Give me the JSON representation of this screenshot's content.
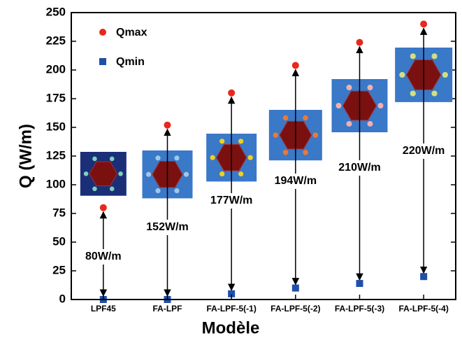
{
  "chart_data": {
    "type": "scatter",
    "x_label": "Modèle",
    "y_label": "Q (W/m)",
    "categories": [
      "LPF45",
      "FA-LPF",
      "FA-LPF-5(-1)",
      "FA-LPF-5(-2)",
      "FA-LPF-5(-3)",
      "FA-LPF-5(-4)"
    ],
    "series": [
      {
        "name": "Qmax",
        "color": "#e8281e",
        "values": [
          80,
          152,
          180,
          204,
          224,
          240
        ]
      },
      {
        "name": "Qmin",
        "color": "#1f4fa8",
        "values": [
          0,
          0,
          5,
          10,
          14,
          20
        ]
      }
    ],
    "annotations": [
      "80W/m",
      "152W/m",
      "177W/m",
      "194W/m",
      "210W/m",
      "220W/m"
    ],
    "ylim": [
      0,
      250
    ],
    "yticks": [
      0,
      25,
      50,
      75,
      100,
      125,
      150,
      175,
      200,
      225,
      250
    ],
    "legend": "upper-left"
  }
}
